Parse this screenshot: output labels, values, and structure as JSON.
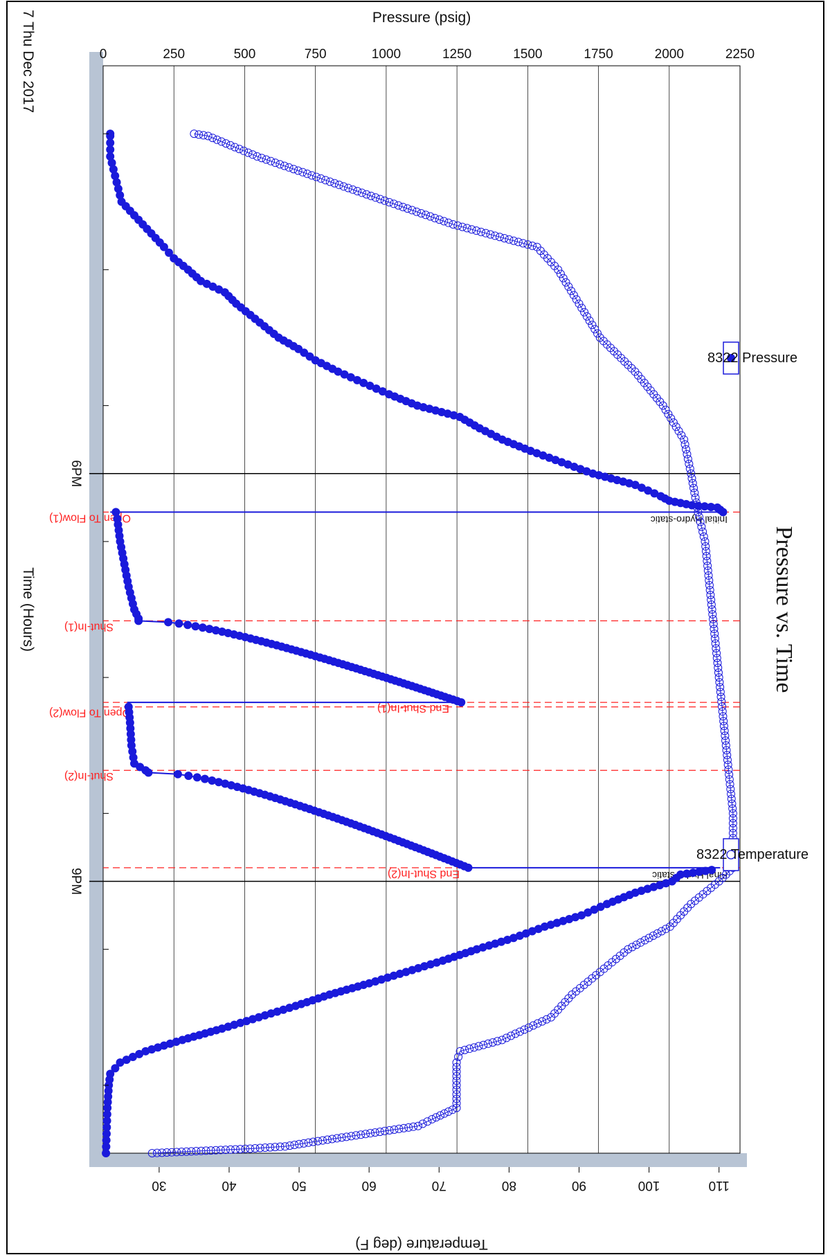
{
  "chart_data": {
    "type": "scatter",
    "title": "Pressure vs. Time",
    "xlabel": "Time (Hours)",
    "date_label": "7 Thu Dec 2017",
    "x_ticks": [
      "6PM",
      "9PM"
    ],
    "x_range": [
      "15:00",
      "23:00"
    ],
    "y_left": {
      "label": "Pressure (psig)",
      "lim": [
        0,
        2250
      ],
      "ticks": [
        0,
        250,
        500,
        750,
        1000,
        1250,
        1500,
        1750,
        2000,
        2250
      ]
    },
    "y_right": {
      "label": "Temperature (deg F)",
      "lim": [
        22,
        113
      ],
      "ticks": [
        30,
        40,
        50,
        60,
        70,
        80,
        90,
        100,
        110
      ]
    },
    "grid": true,
    "colors": {
      "series": "#1a1adb",
      "event": "#ff2020",
      "frame": "#b8c4d4"
    },
    "legend": [
      {
        "name": "8322 Pressure",
        "marker": "filled-circle",
        "position": "top"
      },
      {
        "name": "8322 Temperature",
        "marker": "open-circle",
        "position": "bottom"
      }
    ],
    "events": [
      {
        "time": "18:17",
        "label": "Initial Hydro-static",
        "style": "black"
      },
      {
        "time": "18:17",
        "label": "Open To Flow(1)",
        "style": "red"
      },
      {
        "time": "19:05",
        "label": "Shut-In(1)",
        "style": "red"
      },
      {
        "time": "19:41",
        "label": "End Shut-In(1)",
        "style": "red"
      },
      {
        "time": "19:43",
        "label": "Open To Flow(2)",
        "style": "red"
      },
      {
        "time": "20:11",
        "label": "Shut-In(2)",
        "style": "red"
      },
      {
        "time": "20:54",
        "label": "End Shut-In(2)",
        "style": "red"
      },
      {
        "time": "20:54",
        "label": "Final Hydro-static",
        "style": "black"
      }
    ],
    "series": [
      {
        "name": "8322 Pressure",
        "segments": [
          {
            "type": "points",
            "data": [
              [
                "15:30",
                25
              ],
              [
                "15:31",
                25
              ],
              [
                "15:40",
                25
              ],
              [
                "16:00",
                65
              ],
              [
                "16:20",
                215
              ],
              [
                "16:25",
                250
              ],
              [
                "16:30",
                300
              ],
              [
                "16:35",
                345
              ],
              [
                "16:40",
                430
              ],
              [
                "16:45",
                470
              ],
              [
                "16:50",
                520
              ],
              [
                "16:55",
                570
              ],
              [
                "17:00",
                620
              ],
              [
                "17:05",
                690
              ],
              [
                "17:10",
                750
              ],
              [
                "17:15",
                830
              ],
              [
                "17:20",
                920
              ],
              [
                "17:25",
                1010
              ],
              [
                "17:30",
                1110
              ],
              [
                "17:35",
                1260
              ],
              [
                "17:40",
                1330
              ],
              [
                "17:45",
                1410
              ],
              [
                "17:50",
                1510
              ],
              [
                "17:55",
                1620
              ],
              [
                "18:00",
                1730
              ],
              [
                "18:05",
                1880
              ],
              [
                "18:10",
                1970
              ],
              [
                "18:12",
                2000
              ],
              [
                "18:14",
                2080
              ],
              [
                "18:15",
                2170
              ],
              [
                "18:16",
                2180
              ],
              [
                "18:17",
                2190
              ]
            ]
          },
          {
            "type": "line",
            "data": [
              [
                "18:17",
                2190
              ],
              [
                "18:17",
                25
              ]
            ]
          },
          {
            "type": "points",
            "data": [
              [
                "18:17",
                45
              ],
              [
                "18:20",
                50
              ],
              [
                "18:30",
                60
              ],
              [
                "18:40",
                75
              ],
              [
                "18:50",
                90
              ],
              [
                "19:00",
                110
              ],
              [
                "19:04",
                125
              ]
            ]
          },
          {
            "type": "curve",
            "from": [
              "19:05",
              125
            ],
            "to": [
              "19:41",
              1265
            ],
            "shape": "buildup"
          },
          {
            "type": "line",
            "data": [
              [
                "19:41",
                1265
              ],
              [
                "19:41",
                85
              ]
            ]
          },
          {
            "type": "points",
            "data": [
              [
                "19:43",
                90
              ],
              [
                "19:50",
                95
              ],
              [
                "20:00",
                100
              ],
              [
                "20:08",
                110
              ],
              [
                "20:11",
                150
              ]
            ]
          },
          {
            "type": "curve",
            "from": [
              "20:12",
              160
            ],
            "to": [
              "20:54",
              1290
            ],
            "shape": "buildup"
          },
          {
            "type": "line",
            "data": [
              [
                "20:54",
                1290
              ],
              [
                "20:54",
                2180
              ]
            ]
          },
          {
            "type": "points",
            "data": [
              [
                "20:55",
                2150
              ],
              [
                "20:57",
                2040
              ],
              [
                "21:00",
                2010
              ],
              [
                "21:05",
                1880
              ],
              [
                "21:10",
                1780
              ],
              [
                "21:15",
                1690
              ],
              [
                "21:20",
                1560
              ],
              [
                "21:25",
                1450
              ],
              [
                "21:30",
                1320
              ],
              [
                "21:35",
                1200
              ],
              [
                "21:40",
                1070
              ],
              [
                "21:45",
                940
              ],
              [
                "21:50",
                800
              ],
              [
                "21:55",
                680
              ],
              [
                "22:00",
                550
              ],
              [
                "22:05",
                420
              ],
              [
                "22:10",
                280
              ],
              [
                "22:15",
                150
              ],
              [
                "22:20",
                60
              ],
              [
                "22:25",
                25
              ],
              [
                "22:30",
                20
              ],
              [
                "22:40",
                15
              ],
              [
                "23:00",
                10
              ]
            ]
          }
        ]
      },
      {
        "name": "8322 Temperature",
        "data": [
          [
            "15:30",
            35
          ],
          [
            "15:31",
            37
          ],
          [
            "15:40",
            44
          ],
          [
            "16:10",
            72
          ],
          [
            "16:20",
            84
          ],
          [
            "16:30",
            87
          ],
          [
            "16:45",
            90
          ],
          [
            "17:00",
            93
          ],
          [
            "17:15",
            98
          ],
          [
            "17:30",
            102
          ],
          [
            "17:45",
            105
          ],
          [
            "18:00",
            106
          ],
          [
            "18:17",
            107
          ],
          [
            "18:30",
            108
          ],
          [
            "19:00",
            109
          ],
          [
            "19:30",
            110
          ],
          [
            "20:00",
            111
          ],
          [
            "20:30",
            112
          ],
          [
            "20:54",
            112
          ],
          [
            "21:00",
            110
          ],
          [
            "21:10",
            106
          ],
          [
            "21:20",
            103
          ],
          [
            "21:30",
            97
          ],
          [
            "21:40",
            93
          ],
          [
            "21:50",
            89
          ],
          [
            "22:00",
            86
          ],
          [
            "22:10",
            79
          ],
          [
            "22:15",
            73
          ],
          [
            "22:20",
            72.5
          ],
          [
            "22:30",
            72.5
          ],
          [
            "22:40",
            72.5
          ],
          [
            "22:45",
            69
          ],
          [
            "22:48",
            67
          ],
          [
            "22:55",
            52
          ],
          [
            "22:57",
            48
          ],
          [
            "22:58",
            43
          ],
          [
            "22:59",
            36
          ],
          [
            "23:00",
            29
          ]
        ]
      }
    ]
  }
}
